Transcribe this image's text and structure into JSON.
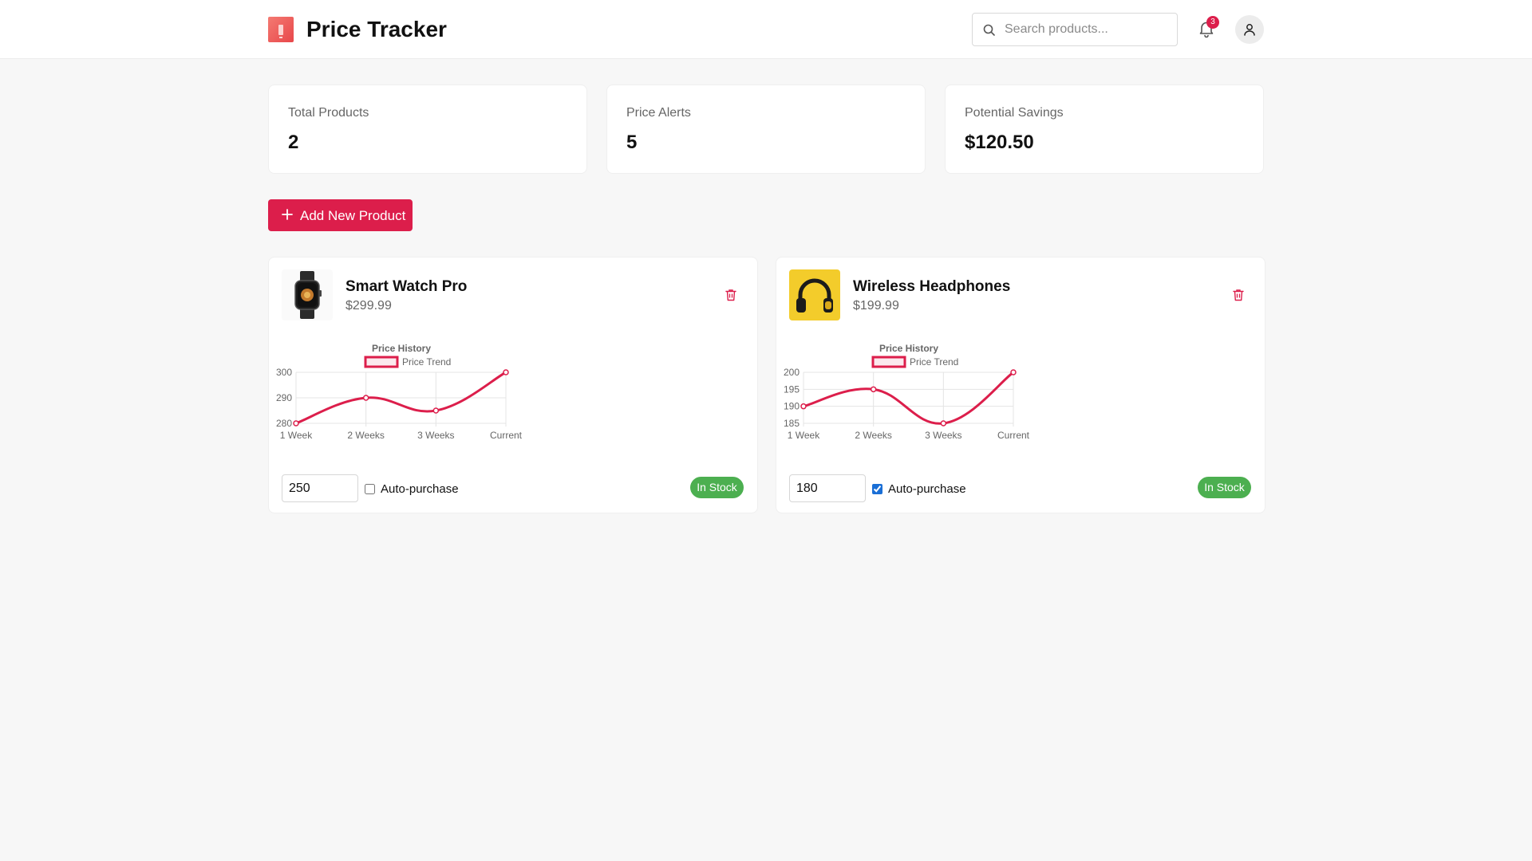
{
  "header": {
    "title": "Price Tracker",
    "search_placeholder": "Search products...",
    "notification_count": "3"
  },
  "stats": [
    {
      "label": "Total Products",
      "value": "2"
    },
    {
      "label": "Price Alerts",
      "value": "5"
    },
    {
      "label": "Potential Savings",
      "value": "$120.50"
    }
  ],
  "add_button_label": "Add New Product",
  "products": [
    {
      "name": "Smart Watch Pro",
      "price": "$299.99",
      "target_price": "250",
      "auto_purchase_label": "Auto-purchase",
      "auto_purchase": false,
      "stock_status": "In Stock",
      "image_icon": "smartwatch-image"
    },
    {
      "name": "Wireless Headphones",
      "price": "$199.99",
      "target_price": "180",
      "auto_purchase_label": "Auto-purchase",
      "auto_purchase": true,
      "stock_status": "In Stock",
      "image_icon": "headphones-image"
    }
  ],
  "colors": {
    "accent": "#dc1e4b",
    "in_stock": "#4caf50",
    "background": "#f7f7f7"
  },
  "chart_data": [
    {
      "type": "line",
      "title": "Price History",
      "categories": [
        "1 Week",
        "2 Weeks",
        "3 Weeks",
        "Current"
      ],
      "series": [
        {
          "name": "Price Trend",
          "values": [
            280,
            290,
            285,
            300
          ]
        }
      ],
      "ylim": [
        280,
        300
      ],
      "yticks": [
        "300",
        "290",
        "280"
      ],
      "grid": true,
      "legend": "top"
    },
    {
      "type": "line",
      "title": "Price History",
      "categories": [
        "1 Week",
        "2 Weeks",
        "3 Weeks",
        "Current"
      ],
      "series": [
        {
          "name": "Price Trend",
          "values": [
            190,
            195,
            185,
            200
          ]
        }
      ],
      "ylim": [
        185,
        200
      ],
      "yticks": [
        "200",
        "195",
        "190",
        "185"
      ],
      "grid": true,
      "legend": "top"
    }
  ]
}
